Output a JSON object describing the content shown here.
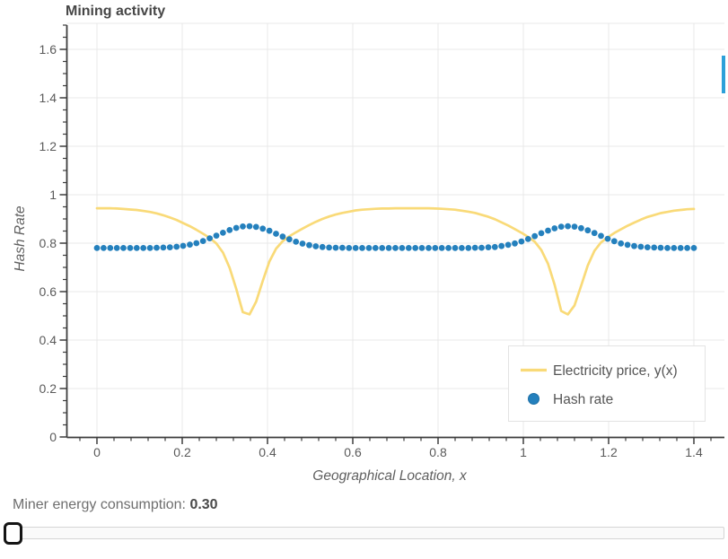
{
  "chart": {
    "title": "Mining activity"
  },
  "chart_data": {
    "type": "line+scatter",
    "title": "Mining activity",
    "xlabel": "Geographical Location, x",
    "ylabel": "Hash Rate",
    "xlim": [
      -0.072,
      1.474
    ],
    "ylim": [
      0,
      1.7
    ],
    "grid": true,
    "legend_position": "lower right",
    "x_major_ticks": [
      0,
      0.2,
      0.4,
      0.6,
      0.8,
      1,
      1.2,
      1.4
    ],
    "x_tick_labels": [
      "0",
      "0.2",
      "0.4",
      "0.6",
      "0.8",
      "1",
      "1.2",
      "1.4"
    ],
    "x_minor_tick_step": 0.04,
    "y_major_ticks": [
      0,
      0.2,
      0.4,
      0.6,
      0.8,
      1,
      1.2,
      1.4,
      1.6
    ],
    "y_tick_labels": [
      "0",
      "0.2",
      "0.4",
      "0.6",
      "0.8",
      "1",
      "1.2",
      "1.4",
      "1.6"
    ],
    "y_minor_tick_step": 0.05,
    "x": [
      0.0,
      0.0156,
      0.0311,
      0.0467,
      0.0622,
      0.0778,
      0.0933,
      0.1089,
      0.1244,
      0.14,
      0.1556,
      0.1711,
      0.1867,
      0.2022,
      0.2178,
      0.2333,
      0.2489,
      0.2644,
      0.28,
      0.2956,
      0.3111,
      0.3267,
      0.3422,
      0.3578,
      0.3733,
      0.3889,
      0.4044,
      0.42,
      0.4356,
      0.4511,
      0.4667,
      0.4822,
      0.4978,
      0.5133,
      0.5289,
      0.5444,
      0.56,
      0.5756,
      0.5911,
      0.6067,
      0.6222,
      0.6378,
      0.6533,
      0.6689,
      0.6844,
      0.7,
      0.7156,
      0.7311,
      0.7467,
      0.7622,
      0.7778,
      0.7933,
      0.8089,
      0.8244,
      0.84,
      0.8556,
      0.8711,
      0.8867,
      0.9022,
      0.9178,
      0.9333,
      0.9489,
      0.9644,
      0.98,
      0.9956,
      1.0111,
      1.0267,
      1.0422,
      1.0578,
      1.0733,
      1.0889,
      1.1044,
      1.12,
      1.1356,
      1.1511,
      1.1667,
      1.1822,
      1.1978,
      1.2133,
      1.2289,
      1.2444,
      1.26,
      1.2756,
      1.2911,
      1.3067,
      1.3222,
      1.3378,
      1.3533,
      1.3689,
      1.3844,
      1.4
    ],
    "series": [
      {
        "name": "Electricity price, y(x)",
        "type": "line",
        "color": "#F9DA78",
        "values": [
          0.944,
          0.944,
          0.944,
          0.943,
          0.941,
          0.939,
          0.937,
          0.933,
          0.929,
          0.923,
          0.915,
          0.906,
          0.896,
          0.883,
          0.87,
          0.855,
          0.839,
          0.822,
          0.799,
          0.761,
          0.698,
          0.611,
          0.515,
          0.506,
          0.558,
          0.644,
          0.724,
          0.777,
          0.808,
          0.828,
          0.845,
          0.86,
          0.875,
          0.888,
          0.9,
          0.91,
          0.918,
          0.925,
          0.93,
          0.935,
          0.938,
          0.94,
          0.942,
          0.943,
          0.943,
          0.944,
          0.944,
          0.944,
          0.944,
          0.944,
          0.944,
          0.943,
          0.942,
          0.94,
          0.938,
          0.934,
          0.93,
          0.925,
          0.917,
          0.909,
          0.899,
          0.886,
          0.873,
          0.858,
          0.843,
          0.826,
          0.806,
          0.772,
          0.715,
          0.629,
          0.52,
          0.506,
          0.543,
          0.624,
          0.708,
          0.768,
          0.803,
          0.824,
          0.842,
          0.857,
          0.872,
          0.885,
          0.897,
          0.908,
          0.916,
          0.924,
          0.929,
          0.934,
          0.937,
          0.94,
          0.941
        ]
      },
      {
        "name": "Hash rate",
        "type": "scatter",
        "color": "#2480BD",
        "edge_color": "#1D6FA6",
        "values": [
          0.78,
          0.78,
          0.78,
          0.78,
          0.78,
          0.78,
          0.78,
          0.78,
          0.78,
          0.781,
          0.782,
          0.783,
          0.785,
          0.789,
          0.794,
          0.8,
          0.809,
          0.82,
          0.831,
          0.843,
          0.854,
          0.863,
          0.869,
          0.87,
          0.867,
          0.86,
          0.851,
          0.839,
          0.827,
          0.816,
          0.806,
          0.798,
          0.792,
          0.787,
          0.784,
          0.782,
          0.781,
          0.781,
          0.78,
          0.78,
          0.78,
          0.78,
          0.78,
          0.78,
          0.78,
          0.78,
          0.78,
          0.78,
          0.78,
          0.78,
          0.78,
          0.78,
          0.78,
          0.78,
          0.78,
          0.78,
          0.78,
          0.781,
          0.781,
          0.783,
          0.784,
          0.788,
          0.793,
          0.799,
          0.807,
          0.817,
          0.829,
          0.841,
          0.852,
          0.861,
          0.868,
          0.87,
          0.868,
          0.862,
          0.853,
          0.842,
          0.83,
          0.818,
          0.808,
          0.799,
          0.793,
          0.788,
          0.785,
          0.783,
          0.782,
          0.781,
          0.78,
          0.78,
          0.78,
          0.78,
          0.78
        ]
      }
    ]
  },
  "footer": {
    "label": "Miner energy consumption: ",
    "value": "0.30"
  },
  "slider": {
    "thumb_position": "left"
  },
  "scrollbar": {
    "color": "#2CA0D9"
  },
  "style_colors": {
    "grid": "#E9E9E9",
    "spine": "#3d3d3d",
    "tick_label": "#5a5a5a",
    "axis_title": "#606060",
    "legend_text": "#555555",
    "legend_border": "#e3e3e3"
  }
}
